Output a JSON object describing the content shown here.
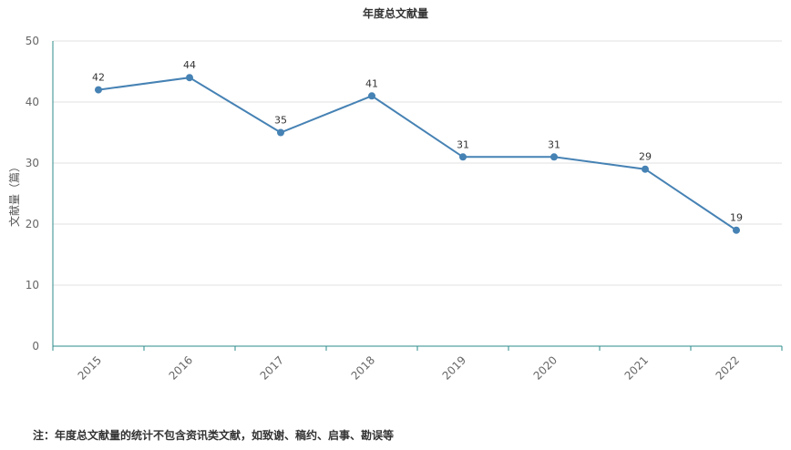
{
  "chart_data": {
    "type": "line",
    "title": "年度总文献量",
    "xlabel": "",
    "ylabel": "文献量（篇）",
    "categories": [
      "2015",
      "2016",
      "2017",
      "2018",
      "2019",
      "2020",
      "2021",
      "2022"
    ],
    "values": [
      42,
      44,
      35,
      41,
      31,
      31,
      29,
      19
    ],
    "ylim": [
      0,
      50
    ],
    "yticks": [
      0,
      10,
      20,
      30,
      40,
      50
    ],
    "grid": true,
    "legend": "none",
    "line_color": "#4682b4",
    "axis_color": "#2e8b8b"
  },
  "footnote": "注：年度总文献量的统计不包含资讯类文献，如致谢、稿约、启事、勘误等"
}
